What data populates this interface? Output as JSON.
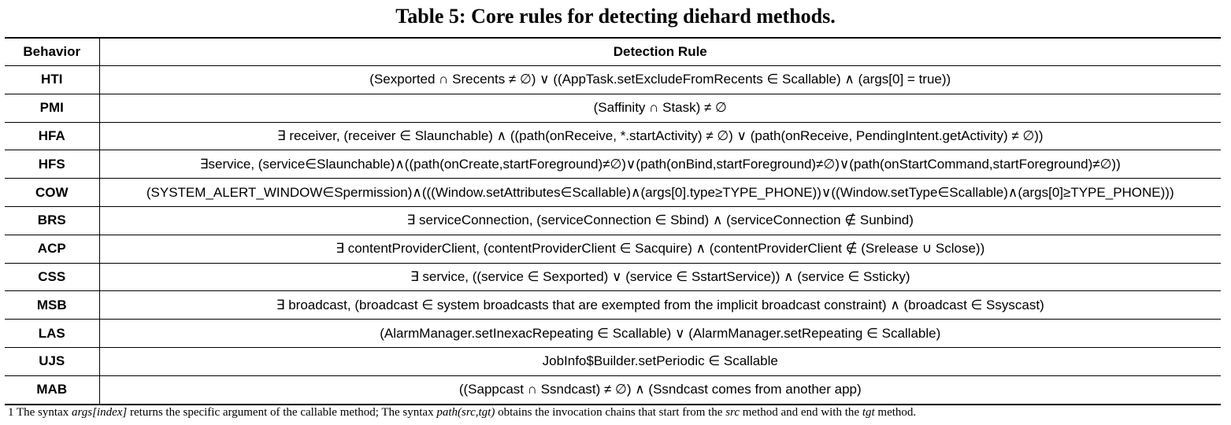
{
  "caption": "Table 5: Core rules for detecting diehard methods.",
  "table": {
    "headers": [
      "Behavior",
      "Detection Rule"
    ],
    "rows": [
      {
        "behavior": "HTI",
        "rule": "(Sexported ∩ Srecents ≠ ∅) ∨ ((AppTask.setExcludeFromRecents ∈ Scallable) ∧ (args[0] = true))"
      },
      {
        "behavior": "PMI",
        "rule": "(Saffinity ∩ Stask) ≠ ∅"
      },
      {
        "behavior": "HFA",
        "rule": "∃ receiver, (receiver ∈ Slaunchable) ∧ ((path(onReceive, *.startActivity) ≠ ∅) ∨ (path(onReceive, PendingIntent.getActivity) ≠ ∅))"
      },
      {
        "behavior": "HFS",
        "rule": "∃service, (service∈Slaunchable)∧((path(onCreate,startForeground)≠∅)∨(path(onBind,startForeground)≠∅)∨(path(onStartCommand,startForeground)≠∅))"
      },
      {
        "behavior": "COW",
        "rule": "(SYSTEM_ALERT_WINDOW∈Spermission)∧(((Window.setAttributes∈Scallable)∧(args[0].type≥TYPE_PHONE))∨((Window.setType∈Scallable)∧(args[0]≥TYPE_PHONE)))"
      },
      {
        "behavior": "BRS",
        "rule": "∃ serviceConnection, (serviceConnection ∈ Sbind) ∧ (serviceConnection ∉ Sunbind)"
      },
      {
        "behavior": "ACP",
        "rule": "∃ contentProviderClient, (contentProviderClient ∈ Sacquire) ∧ (contentProviderClient ∉ (Srelease ∪ Sclose))"
      },
      {
        "behavior": "CSS",
        "rule": "∃ service, ((service ∈ Sexported) ∨ (service ∈ SstartService)) ∧ (service ∈ Ssticky)"
      },
      {
        "behavior": "MSB",
        "rule": "∃ broadcast, (broadcast ∈ system broadcasts that are exempted from the implicit broadcast constraint) ∧ (broadcast ∈ Ssyscast)"
      },
      {
        "behavior": "LAS",
        "rule": "(AlarmManager.setInexacRepeating ∈ Scallable) ∨ (AlarmManager.setRepeating ∈ Scallable)"
      },
      {
        "behavior": "UJS",
        "rule": "JobInfo$Builder.setPeriodic ∈ Scallable"
      },
      {
        "behavior": "MAB",
        "rule": "((Sappcast ∩ Ssndcast) ≠ ∅) ∧ (Ssndcast comes from another app)"
      }
    ]
  },
  "footnote": {
    "marker": "1",
    "t1": "The syntax",
    "i1": "args[index]",
    "t2": "returns the specific argument of the callable method; The syntax",
    "i2": "path(src,tgt)",
    "t3": "obtains the invocation chains that start from the",
    "i3": "src",
    "t4": "method and end with the",
    "i4": "tgt",
    "t5": "method."
  }
}
